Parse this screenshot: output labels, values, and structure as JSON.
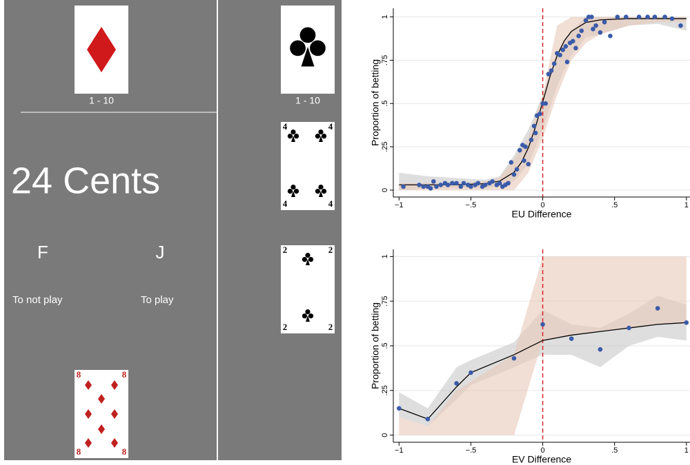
{
  "interface": {
    "hidden_cards": [
      {
        "range": "1 - 10"
      },
      {
        "range": "1 - 10"
      }
    ],
    "offer": "24 Cents",
    "keys": [
      {
        "key": "F",
        "action": "To not play"
      },
      {
        "key": "J",
        "action": "To play"
      }
    ],
    "cards": [
      {
        "rank": "4"
      },
      {
        "rank": "2"
      },
      {
        "rank": "8"
      }
    ]
  },
  "chart_data": [
    {
      "type": "scatter",
      "y_label": "Proportion of betting",
      "x_label": "EU Difference",
      "xlim": [
        -1.04,
        1.025
      ],
      "ylim": [
        -0.04,
        1.05
      ],
      "xticks": [
        {
          "value": -1,
          "label": "−1"
        },
        {
          "value": -0.5,
          "label": "−.5"
        },
        0,
        {
          "value": 0.5,
          "label": ".5"
        },
        1
      ],
      "yticks": [
        0,
        {
          "value": 0.25,
          "label": ".25"
        },
        {
          "value": 0.5,
          "label": ".5"
        },
        {
          "value": 0.75,
          "label": ".75"
        },
        1
      ],
      "grid": true,
      "vline": 0,
      "vline_color": "#d62728",
      "bands": [
        {
          "color": "#c8c8c8",
          "x": [
            -1,
            -0.8,
            -0.6,
            -0.4,
            -0.3,
            -0.2,
            -0.1,
            0,
            0.1,
            0.2,
            0.3,
            0.4,
            0.6,
            0.8,
            1
          ],
          "lower": [
            0,
            0.01,
            0.01,
            0.01,
            0.02,
            0.05,
            0.15,
            0.35,
            0.6,
            0.78,
            0.88,
            0.9,
            0.95,
            0.96,
            0.92
          ],
          "upper": [
            0.1,
            0.08,
            0.07,
            0.06,
            0.08,
            0.2,
            0.35,
            0.55,
            0.8,
            0.92,
            1,
            1,
            1,
            1,
            1
          ]
        },
        {
          "color": "#e8c8b8",
          "x": [
            -1,
            -0.8,
            -0.6,
            -0.4,
            -0.3,
            -0.2,
            -0.1,
            0,
            0.1,
            0.2,
            0.3,
            0.4,
            0.6,
            0.8,
            1
          ],
          "lower": [
            0,
            0,
            0,
            0,
            0,
            0,
            0.1,
            0.3,
            0.55,
            0.75,
            0.85,
            0.9,
            0.95,
            0.97,
            0.97
          ],
          "upper": [
            0.04,
            0.04,
            0.04,
            0.05,
            0.07,
            0.18,
            0.3,
            0.55,
            0.95,
            1,
            1,
            1,
            1,
            1,
            1
          ]
        }
      ],
      "points": {
        "color": "#3a5ba9",
        "x": [
          -0.97,
          -0.86,
          -0.83,
          -0.8,
          -0.78,
          -0.76,
          -0.74,
          -0.71,
          -0.68,
          -0.66,
          -0.63,
          -0.6,
          -0.57,
          -0.55,
          -0.52,
          -0.5,
          -0.47,
          -0.45,
          -0.42,
          -0.4,
          -0.37,
          -0.35,
          -0.32,
          -0.3,
          -0.28,
          -0.26,
          -0.24,
          -0.22,
          -0.2,
          -0.18,
          -0.16,
          -0.14,
          -0.13,
          -0.12,
          -0.1,
          -0.08,
          -0.06,
          -0.05,
          -0.04,
          -0.02,
          0,
          0.02,
          0.04,
          0.06,
          0.08,
          0.1,
          0.12,
          0.14,
          0.16,
          0.17,
          0.19,
          0.21,
          0.23,
          0.25,
          0.27,
          0.3,
          0.32,
          0.34,
          0.35,
          0.37,
          0.4,
          0.43,
          0.47,
          0.52,
          0.58,
          0.67,
          0.73,
          0.78,
          0.85,
          0.9,
          0.96
        ],
        "values": [
          0.02,
          0.03,
          0.02,
          0.02,
          0.01,
          0.05,
          0.02,
          0.03,
          0.04,
          0.03,
          0.04,
          0.04,
          0.02,
          0.04,
          0.03,
          0.02,
          0.03,
          0.04,
          0.02,
          0.03,
          0.04,
          0.05,
          0.03,
          0.04,
          0.02,
          0.03,
          0.04,
          0.16,
          0.09,
          0.12,
          0.23,
          0.26,
          0.17,
          0.25,
          0.15,
          0.29,
          0.37,
          0.33,
          0.43,
          0.44,
          0.5,
          0.5,
          0.67,
          0.69,
          0.73,
          0.79,
          0.78,
          0.81,
          0.83,
          0.74,
          0.85,
          0.86,
          0.82,
          0.89,
          0.92,
          0.98,
          1,
          1,
          0.93,
          0.95,
          0.91,
          0.97,
          0.89,
          1,
          1,
          1,
          1,
          1,
          1,
          0.99,
          0.95
        ]
      },
      "fit": {
        "color": "#000000",
        "x": [
          -1,
          -0.6,
          -0.4,
          -0.3,
          -0.2,
          -0.15,
          -0.1,
          -0.05,
          0,
          0.05,
          0.1,
          0.15,
          0.2,
          0.3,
          0.4,
          0.6,
          1
        ],
        "values": [
          0.03,
          0.031,
          0.037,
          0.052,
          0.103,
          0.158,
          0.244,
          0.365,
          0.51,
          0.655,
          0.776,
          0.862,
          0.917,
          0.968,
          0.983,
          0.99,
          0.99
        ]
      }
    },
    {
      "type": "scatter",
      "y_label": "Proportion of betting",
      "x_label": "EV Difference",
      "xlim": [
        -1.04,
        1.025
      ],
      "ylim": [
        -0.04,
        1.04
      ],
      "xticks": [
        {
          "value": -1,
          "label": "−1"
        },
        {
          "value": -0.5,
          "label": "−.5"
        },
        0,
        {
          "value": 0.5,
          "label": ".5"
        },
        1
      ],
      "yticks": [
        0,
        {
          "value": 0.25,
          "label": ".25"
        },
        {
          "value": 0.5,
          "label": ".5"
        },
        {
          "value": 0.75,
          "label": ".75"
        },
        1
      ],
      "grid": true,
      "vline": 0,
      "vline_color": "#d62728",
      "bands": [
        {
          "color": "#c8c8c8",
          "x": [
            -1,
            -0.8,
            -0.6,
            -0.5,
            -0.2,
            0,
            0.2,
            0.4,
            0.6,
            0.8,
            1
          ],
          "lower": [
            0.1,
            0.05,
            0.2,
            0.28,
            0.38,
            0.45,
            0.45,
            0.38,
            0.5,
            0.55,
            0.53
          ],
          "upper": [
            0.24,
            0.15,
            0.38,
            0.42,
            0.52,
            0.7,
            0.62,
            0.6,
            0.68,
            0.78,
            0.73
          ]
        },
        {
          "color": "#e8c8b8",
          "x": [
            -1,
            -0.8,
            -0.6,
            -0.5,
            -0.2,
            0,
            0.2,
            0.4,
            0.6,
            0.8,
            1
          ],
          "lower": [
            0,
            0,
            0,
            0,
            0,
            0.53,
            0.56,
            0.58,
            0.6,
            0.62,
            0.63
          ],
          "upper": [
            0.1,
            0.05,
            0.25,
            0.3,
            0.45,
            1,
            1,
            1,
            1,
            1,
            1
          ]
        }
      ],
      "points": {
        "color": "#3a5ba9",
        "x": [
          -1,
          -0.8,
          -0.6,
          -0.5,
          -0.2,
          0,
          0.2,
          0.4,
          0.6,
          0.8,
          1
        ],
        "values": [
          0.15,
          0.09,
          0.29,
          0.35,
          0.43,
          0.62,
          0.54,
          0.48,
          0.6,
          0.71,
          0.63
        ]
      },
      "fit": {
        "color": "#000000",
        "x": [
          -1,
          -0.8,
          -0.6,
          -0.5,
          -0.2,
          0,
          0.2,
          0.4,
          0.6,
          0.8,
          1
        ],
        "values": [
          0.15,
          0.09,
          0.27,
          0.35,
          0.45,
          0.53,
          0.56,
          0.58,
          0.6,
          0.62,
          0.63
        ]
      }
    }
  ]
}
